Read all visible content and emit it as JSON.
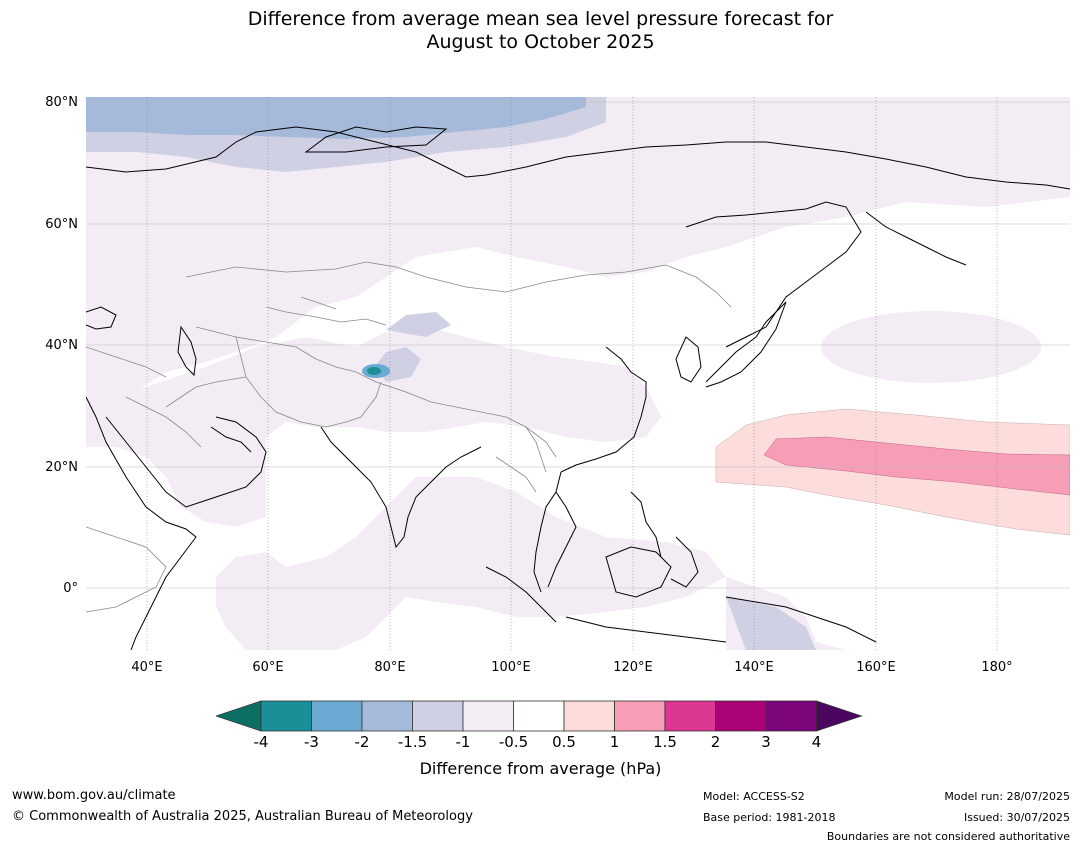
{
  "title_line1": "Difference from average mean sea level pressure forecast for",
  "title_line2": "August to October 2025",
  "lat_labels": [
    "80°N",
    "60°N",
    "40°N",
    "20°N",
    "0°"
  ],
  "lon_labels": [
    "40°E",
    "60°E",
    "80°E",
    "100°E",
    "120°E",
    "140°E",
    "160°E",
    "180°"
  ],
  "colorbar": {
    "ticks": [
      "-4",
      "-3",
      "-2",
      "-1.5",
      "-1",
      "-0.5",
      "0.5",
      "1",
      "1.5",
      "2",
      "3",
      "4"
    ],
    "colors": [
      "#0d6e64",
      "#1b8f97",
      "#6aa9d1",
      "#a5badb",
      "#cfd0e3",
      "#f3ecf5",
      "#ffffff",
      "#fddcdc",
      "#f79db6",
      "#dc3893",
      "#ab0377",
      "#7d057c",
      "#4a0660"
    ],
    "label": "Difference from average (hPa)"
  },
  "footer": {
    "url": "www.bom.gov.au/climate",
    "copyright": "© Commonwealth of Australia 2025, Australian Bureau of Meteorology",
    "model": "Model: ACCESS-S2",
    "base_period": "Base period: 1981-2018",
    "model_run": "Model run: 28/07/2025",
    "issued": "Issued: 30/07/2025",
    "disclaimer": "Boundaries are not considered authoritative"
  }
}
